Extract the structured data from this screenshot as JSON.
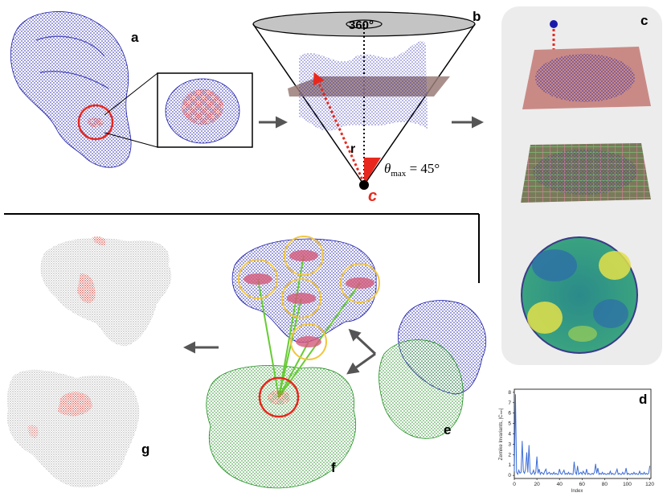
{
  "panels": {
    "a": "a",
    "b": "b",
    "c": "c",
    "d": "d",
    "e": "e",
    "f": "f",
    "g": "g"
  },
  "cone": {
    "rotation_label": "360°",
    "radius_label": "r",
    "center_label": "c",
    "angle_label": "θ",
    "angle_subscript": "max",
    "angle_value": " = 45°"
  },
  "colors": {
    "protein_blue": "#1a1aaa",
    "protein_green": "#1f8f1f",
    "surface_gray": "#c8c8c8",
    "highlight_red": "#e8281e",
    "panel_c_bg": "#ececec",
    "plane_pink": "#c98a86",
    "grid_green": "#7ad07a",
    "grid_pink": "#e07aa0",
    "patch_ring_yellow": "#f2c641",
    "link_green": "#66cc33",
    "chart_line": "#3a6bd6"
  },
  "chart_data": {
    "type": "line",
    "title": "",
    "xlabel": "Index",
    "ylabel": "Zernike Invariants, |Cₙₘ|",
    "xlim": [
      0,
      121
    ],
    "ylim": [
      -0.3,
      8.3
    ],
    "x_ticks": [
      0,
      20,
      40,
      60,
      80,
      100,
      120
    ],
    "y_ticks": [
      0,
      1,
      2,
      3,
      4,
      5,
      6,
      7,
      8
    ],
    "series": [
      {
        "values": [
          0.4,
          7.8,
          0.3,
          0.1,
          0.5,
          0.2,
          0.3,
          3.3,
          0.4,
          0.2,
          0.6,
          2.2,
          0.3,
          2.9,
          0.3,
          0.1,
          0.2,
          0.5,
          0.1,
          0.3,
          1.8,
          0.2,
          0.6,
          0.1,
          0.3,
          0.2,
          0.1,
          0.4,
          0.6,
          0.1,
          0.2,
          0.3,
          0.1,
          0.2,
          0.1,
          0.3,
          0.1,
          0.2,
          0.1,
          0.1,
          0.6,
          0.2,
          0.1,
          0.3,
          0.5,
          0.1,
          0.2,
          0.1,
          0.3,
          0.1,
          0.2,
          0.1,
          0.1,
          1.3,
          0.3,
          0.1,
          0.9,
          0.1,
          0.2,
          0.3,
          0.1,
          0.4,
          0.2,
          0.1,
          0.6,
          0.1,
          0.2,
          0.1,
          0.1,
          0.2,
          0.1,
          0.3,
          1.1,
          0.2,
          0.7,
          0.1,
          0.2,
          0.1,
          0.3,
          0.1,
          0.2,
          0.1,
          0.1,
          0.2,
          0.1,
          0.4,
          0.1,
          0.2,
          0.1,
          0.1,
          0.3,
          0.6,
          0.1,
          0.2,
          0.1,
          0.1,
          0.3,
          0.1,
          0.2,
          0.7,
          0.1,
          0.2,
          0.1,
          0.1,
          0.2,
          0.1,
          0.3,
          0.1,
          0.2,
          0.1,
          0.1,
          0.4,
          0.1,
          0.2,
          0.1,
          0.3,
          0.1,
          0.2,
          0.1,
          0.2,
          0.9
        ]
      }
    ]
  }
}
